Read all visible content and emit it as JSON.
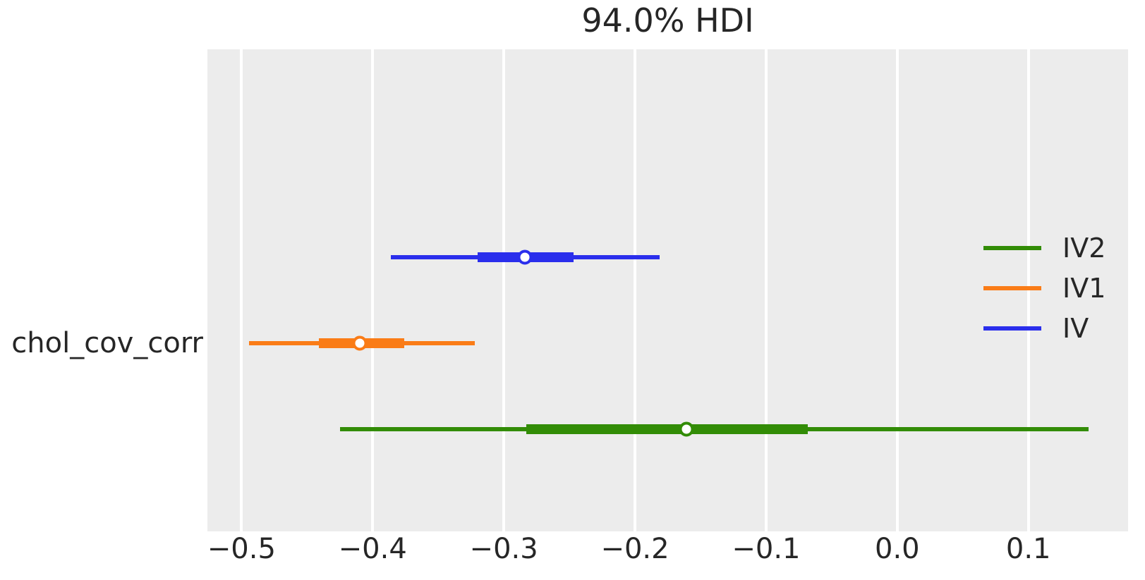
{
  "figure": {
    "title": "94.0% HDI",
    "ylabel": "chol_cov_corr"
  },
  "colors": {
    "background": "#ffffff",
    "axes_background": "#ececec",
    "grid": "#ffffff",
    "text": "#262626",
    "blue": "#2a2eec",
    "orange": "#fa7c17",
    "green": "#328c06"
  },
  "chart_data": {
    "type": "forest",
    "title": "94.0% HDI",
    "hdi_prob": 0.94,
    "variable": "chol_cov_corr",
    "xlim": [
      -0.526,
      0.176
    ],
    "xticks": [
      -0.5,
      -0.4,
      -0.3,
      -0.2,
      -0.1,
      0.0,
      0.1
    ],
    "xtick_labels": [
      "−0.5",
      "−0.4",
      "−0.3",
      "−0.2",
      "−0.1",
      "0.0",
      "0.1"
    ],
    "grid": "vertical-white",
    "marker_style": "white-filled-circle-colored-edge",
    "series": [
      {
        "name": "IV",
        "color": "#2a2eec",
        "hdi_94": [
          -0.386,
          -0.181
        ],
        "quartile_range": [
          -0.32,
          -0.247
        ],
        "median": -0.284
      },
      {
        "name": "IV1",
        "color": "#fa7c17",
        "hdi_94": [
          -0.494,
          -0.322
        ],
        "quartile_range": [
          -0.441,
          -0.376
        ],
        "median": -0.41
      },
      {
        "name": "IV2",
        "color": "#328c06",
        "hdi_94": [
          -0.425,
          0.146
        ],
        "quartile_range": [
          -0.283,
          -0.068
        ],
        "median": -0.161
      }
    ],
    "row_fractions": [
      0.431,
      0.61,
      0.788
    ],
    "legend": {
      "position": "center right",
      "frame": false,
      "entries": [
        "IV2",
        "IV1",
        "IV"
      ]
    }
  }
}
